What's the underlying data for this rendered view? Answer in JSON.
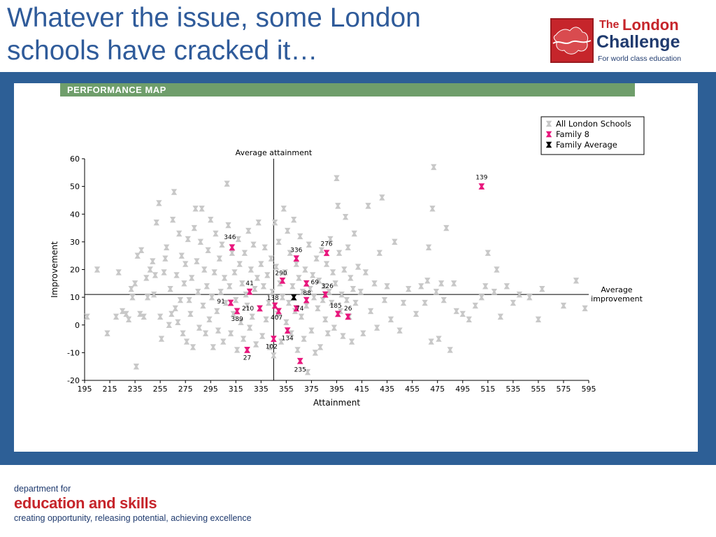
{
  "slide": {
    "title_line1": "Whatever the issue, some London",
    "title_line2": "schools have cracked it…"
  },
  "logo": {
    "the": "The",
    "london": "London",
    "challenge": "Challenge",
    "tagline": "For world class education"
  },
  "panel": {
    "header": "PERFORMANCE MAP"
  },
  "footer": {
    "dept": "department for",
    "edu": "education and skills",
    "tagline": "creating opportunity, releasing potential, achieving excellence"
  },
  "colors": {
    "title": "#2f5b9a",
    "frame": "#2d5f96",
    "header_bar": "#6f9e6b",
    "brand_red": "#c6252b",
    "all_schools": "#c8c8c8",
    "family8": "#e8177d",
    "family_avg": "#000000"
  },
  "chart_data": {
    "type": "scatter",
    "xlabel": "Attainment",
    "ylabel": "Improvement",
    "xlim": [
      195,
      595
    ],
    "ylim": [
      -20,
      60
    ],
    "xticks": [
      195,
      215,
      235,
      255,
      275,
      295,
      315,
      335,
      355,
      375,
      395,
      415,
      435,
      455,
      475,
      495,
      515,
      535,
      555,
      575,
      595
    ],
    "yticks": [
      -20,
      -10,
      0,
      10,
      20,
      30,
      40,
      50,
      60
    ],
    "avg_attainment": {
      "value": 345,
      "label": "Average attainment"
    },
    "avg_improvement": {
      "value": 11,
      "label_line1": "Average",
      "label_line2": "improvement"
    },
    "legend": {
      "position": "top-right",
      "entries": [
        {
          "name": "All London Schools",
          "color": "#c8c8c8"
        },
        {
          "name": "Family 8",
          "color": "#e8177d"
        },
        {
          "name": "Family Average",
          "color": "#000000"
        }
      ]
    },
    "series": [
      {
        "name": "All London Schools",
        "color": "#c8c8c8",
        "points": [
          [
            197,
            3
          ],
          [
            205,
            20
          ],
          [
            213,
            -3
          ],
          [
            220,
            3
          ],
          [
            222,
            19
          ],
          [
            225,
            5
          ],
          [
            228,
            4
          ],
          [
            230,
            2
          ],
          [
            232,
            13
          ],
          [
            233,
            10
          ],
          [
            235,
            15
          ],
          [
            236,
            -15
          ],
          [
            237,
            25
          ],
          [
            239,
            4
          ],
          [
            240,
            27
          ],
          [
            242,
            3
          ],
          [
            244,
            17
          ],
          [
            245,
            10
          ],
          [
            247,
            20
          ],
          [
            249,
            23
          ],
          [
            250,
            11
          ],
          [
            251,
            18
          ],
          [
            252,
            37
          ],
          [
            254,
            44
          ],
          [
            255,
            3
          ],
          [
            256,
            -5
          ],
          [
            258,
            19
          ],
          [
            259,
            24
          ],
          [
            260,
            28
          ],
          [
            262,
            0
          ],
          [
            263,
            13
          ],
          [
            264,
            4
          ],
          [
            265,
            38
          ],
          [
            266,
            48
          ],
          [
            267,
            6
          ],
          [
            268,
            18
          ],
          [
            269,
            1
          ],
          [
            270,
            33
          ],
          [
            271,
            9
          ],
          [
            272,
            25
          ],
          [
            273,
            -3
          ],
          [
            274,
            15
          ],
          [
            275,
            22
          ],
          [
            276,
            -6
          ],
          [
            277,
            31
          ],
          [
            278,
            9
          ],
          [
            279,
            4
          ],
          [
            280,
            17
          ],
          [
            281,
            -8
          ],
          [
            282,
            35
          ],
          [
            283,
            42
          ],
          [
            284,
            23
          ],
          [
            285,
            12
          ],
          [
            286,
            -1
          ],
          [
            287,
            30
          ],
          [
            288,
            42
          ],
          [
            289,
            7
          ],
          [
            290,
            20
          ],
          [
            291,
            -3
          ],
          [
            292,
            14
          ],
          [
            293,
            27
          ],
          [
            294,
            2
          ],
          [
            295,
            38
          ],
          [
            296,
            10
          ],
          [
            297,
            -8
          ],
          [
            298,
            19
          ],
          [
            299,
            33
          ],
          [
            300,
            5
          ],
          [
            301,
            -2
          ],
          [
            302,
            24
          ],
          [
            303,
            12
          ],
          [
            304,
            29
          ],
          [
            305,
            -6
          ],
          [
            306,
            17
          ],
          [
            307,
            8
          ],
          [
            308,
            51
          ],
          [
            309,
            36
          ],
          [
            310,
            14
          ],
          [
            311,
            -3
          ],
          [
            312,
            26
          ],
          [
            313,
            4
          ],
          [
            314,
            19
          ],
          [
            315,
            9
          ],
          [
            316,
            -9
          ],
          [
            317,
            31
          ],
          [
            318,
            22
          ],
          [
            319,
            1
          ],
          [
            320,
            15
          ],
          [
            321,
            -5
          ],
          [
            322,
            26
          ],
          [
            323,
            11
          ],
          [
            324,
            7
          ],
          [
            325,
            34
          ],
          [
            326,
            -1
          ],
          [
            327,
            20
          ],
          [
            328,
            3
          ],
          [
            329,
            29
          ],
          [
            330,
            13
          ],
          [
            331,
            -7
          ],
          [
            332,
            17
          ],
          [
            333,
            37
          ],
          [
            334,
            6
          ],
          [
            335,
            22
          ],
          [
            336,
            -4
          ],
          [
            337,
            14
          ],
          [
            338,
            28
          ],
          [
            339,
            2
          ],
          [
            340,
            18
          ],
          [
            341,
            8
          ],
          [
            342,
            -8
          ],
          [
            343,
            24
          ],
          [
            344,
            12
          ],
          [
            345,
            -11
          ],
          [
            346,
            37
          ],
          [
            347,
            21
          ],
          [
            348,
            4
          ],
          [
            349,
            30
          ],
          [
            350,
            15
          ],
          [
            351,
            -6
          ],
          [
            352,
            10
          ],
          [
            353,
            42
          ],
          [
            354,
            19
          ],
          [
            355,
            1
          ],
          [
            356,
            34
          ],
          [
            357,
            8
          ],
          [
            358,
            26
          ],
          [
            359,
            -3
          ],
          [
            360,
            14
          ],
          [
            361,
            38
          ],
          [
            362,
            5
          ],
          [
            363,
            22
          ],
          [
            364,
            -9
          ],
          [
            365,
            17
          ],
          [
            366,
            32
          ],
          [
            367,
            3
          ],
          [
            368,
            12
          ],
          [
            369,
            -5
          ],
          [
            370,
            20
          ],
          [
            371,
            7
          ],
          [
            372,
            -17
          ],
          [
            373,
            29
          ],
          [
            374,
            13
          ],
          [
            375,
            -2
          ],
          [
            376,
            18
          ],
          [
            377,
            10
          ],
          [
            378,
            -10
          ],
          [
            379,
            24
          ],
          [
            380,
            6
          ],
          [
            381,
            16
          ],
          [
            382,
            -8
          ],
          [
            383,
            27
          ],
          [
            384,
            9
          ],
          [
            385,
            14
          ],
          [
            386,
            2
          ],
          [
            387,
            22
          ],
          [
            388,
            -3
          ],
          [
            389,
            12
          ],
          [
            390,
            31
          ],
          [
            391,
            8
          ],
          [
            392,
            19
          ],
          [
            393,
            -1
          ],
          [
            394,
            15
          ],
          [
            395,
            53
          ],
          [
            396,
            43
          ],
          [
            397,
            26
          ],
          [
            398,
            5
          ],
          [
            399,
            11
          ],
          [
            400,
            -4
          ],
          [
            401,
            20
          ],
          [
            402,
            39
          ],
          [
            403,
            9
          ],
          [
            404,
            28
          ],
          [
            405,
            3
          ],
          [
            406,
            17
          ],
          [
            407,
            -6
          ],
          [
            408,
            13
          ],
          [
            409,
            33
          ],
          [
            410,
            8
          ],
          [
            412,
            21
          ],
          [
            414,
            12
          ],
          [
            416,
            -3
          ],
          [
            418,
            19
          ],
          [
            420,
            43
          ],
          [
            422,
            5
          ],
          [
            425,
            15
          ],
          [
            427,
            -1
          ],
          [
            429,
            26
          ],
          [
            431,
            46
          ],
          [
            433,
            9
          ],
          [
            435,
            14
          ],
          [
            438,
            2
          ],
          [
            441,
            30
          ],
          [
            445,
            -2
          ],
          [
            448,
            8
          ],
          [
            452,
            13
          ],
          [
            458,
            4
          ],
          [
            462,
            14
          ],
          [
            465,
            8
          ],
          [
            467,
            16
          ],
          [
            468,
            28
          ],
          [
            470,
            -6
          ],
          [
            471,
            42
          ],
          [
            472,
            57
          ],
          [
            474,
            12
          ],
          [
            476,
            -5
          ],
          [
            478,
            15
          ],
          [
            480,
            9
          ],
          [
            482,
            35
          ],
          [
            485,
            -9
          ],
          [
            488,
            15
          ],
          [
            490,
            5
          ],
          [
            495,
            4
          ],
          [
            500,
            2
          ],
          [
            505,
            7
          ],
          [
            510,
            10
          ],
          [
            513,
            14
          ],
          [
            515,
            26
          ],
          [
            520,
            12
          ],
          [
            522,
            20
          ],
          [
            525,
            3
          ],
          [
            530,
            14
          ],
          [
            535,
            8
          ],
          [
            540,
            11
          ],
          [
            548,
            10
          ],
          [
            555,
            2
          ],
          [
            558,
            13
          ],
          [
            575,
            7
          ],
          [
            585,
            16
          ],
          [
            592,
            6
          ]
        ]
      },
      {
        "name": "Family 8",
        "color": "#e8177d",
        "points": [
          [
            311,
            8,
            "91"
          ],
          [
            312,
            28,
            "346"
          ],
          [
            316,
            5,
            "389"
          ],
          [
            326,
            12,
            "41"
          ],
          [
            324,
            -9,
            "27"
          ],
          [
            334,
            6,
            "210"
          ],
          [
            345,
            -5,
            "102"
          ],
          [
            346,
            7,
            "138"
          ],
          [
            349,
            5,
            "407"
          ],
          [
            352,
            16,
            "290"
          ],
          [
            356,
            -2,
            "134"
          ],
          [
            363,
            6,
            "74"
          ],
          [
            363,
            24,
            "336"
          ],
          [
            366,
            -13,
            "235"
          ],
          [
            371,
            15,
            "69"
          ],
          [
            371,
            9,
            "88"
          ],
          [
            386,
            11,
            "326"
          ],
          [
            387,
            26,
            "276"
          ],
          [
            396,
            4,
            "185"
          ],
          [
            404,
            3,
            "26"
          ],
          [
            510,
            50,
            "139"
          ]
        ]
      },
      {
        "name": "Family Average",
        "color": "#000000",
        "points": [
          [
            361,
            10
          ]
        ]
      }
    ]
  }
}
